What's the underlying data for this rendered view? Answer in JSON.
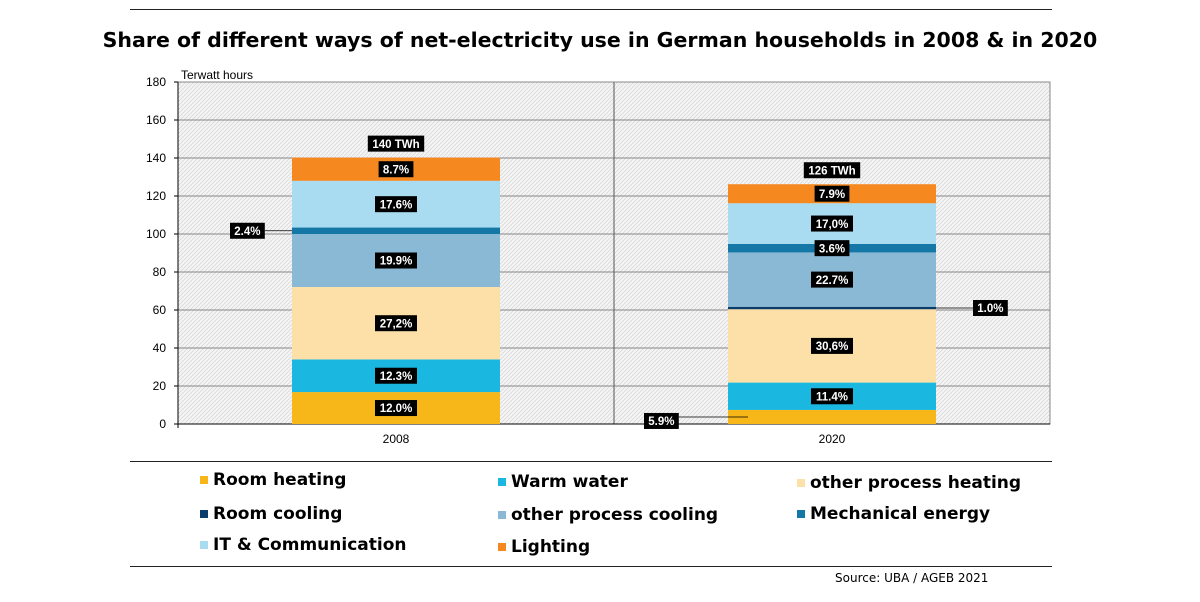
{
  "chart_data": {
    "type": "bar",
    "title": "Share of different ways of net-electricity use in German households in 2008 & in 2020",
    "ylabel": "Terwatt hours",
    "xlabel": "",
    "ylim": [
      0,
      180
    ],
    "yticks": [
      0,
      20,
      40,
      60,
      80,
      100,
      120,
      140,
      160,
      180
    ],
    "grid": true,
    "stacked": true,
    "categories": [
      "2008",
      "2020"
    ],
    "totals": [
      "140 TWh",
      "126 TWh"
    ],
    "series": [
      {
        "name": "Room heating",
        "color": "#f7b718",
        "values": [
          16.8,
          7.4
        ],
        "labels": [
          "12.0%",
          "5.9%"
        ]
      },
      {
        "name": "Warm water",
        "color": "#1ab7e0",
        "values": [
          17.2,
          14.4
        ],
        "labels": [
          "12.3%",
          "11.4%"
        ]
      },
      {
        "name": "other process heating",
        "color": "#fde0a8",
        "values": [
          38.1,
          38.6
        ],
        "labels": [
          "27,2%",
          "30,6%"
        ]
      },
      {
        "name": "Room cooling",
        "color": "#0b3d6b",
        "values": [
          0,
          1.3
        ],
        "labels": [
          "",
          "1.0%"
        ]
      },
      {
        "name": "other process cooling",
        "color": "#8ab9d6",
        "values": [
          27.9,
          28.6
        ],
        "labels": [
          "19.9%",
          "22.7%"
        ]
      },
      {
        "name": "Mechanical energy",
        "color": "#1477a6",
        "values": [
          3.4,
          4.5
        ],
        "labels": [
          "2.4%",
          "3.6%"
        ]
      },
      {
        "name": "IT & Communication",
        "color": "#a9dcf0",
        "values": [
          24.6,
          21.4
        ],
        "labels": [
          "17.6%",
          "17,0%"
        ]
      },
      {
        "name": "Lighting",
        "color": "#f5881f",
        "values": [
          12.2,
          10.0
        ],
        "labels": [
          "8.7%",
          "7.9%"
        ]
      }
    ]
  },
  "legend": {
    "items": [
      {
        "label": "Room heating",
        "color": "#f7b718"
      },
      {
        "label": "Warm water",
        "color": "#1ab7e0"
      },
      {
        "label": "other process heating",
        "color": "#fde0a8"
      },
      {
        "label": "Room cooling",
        "color": "#0b3d6b"
      },
      {
        "label": "other process cooling",
        "color": "#8ab9d6"
      },
      {
        "label": "Mechanical energy",
        "color": "#1477a6"
      },
      {
        "label": "IT & Communication",
        "color": "#a9dcf0"
      },
      {
        "label": "Lighting",
        "color": "#f5881f"
      }
    ]
  },
  "source": "Source: UBA / AGEB 2021"
}
